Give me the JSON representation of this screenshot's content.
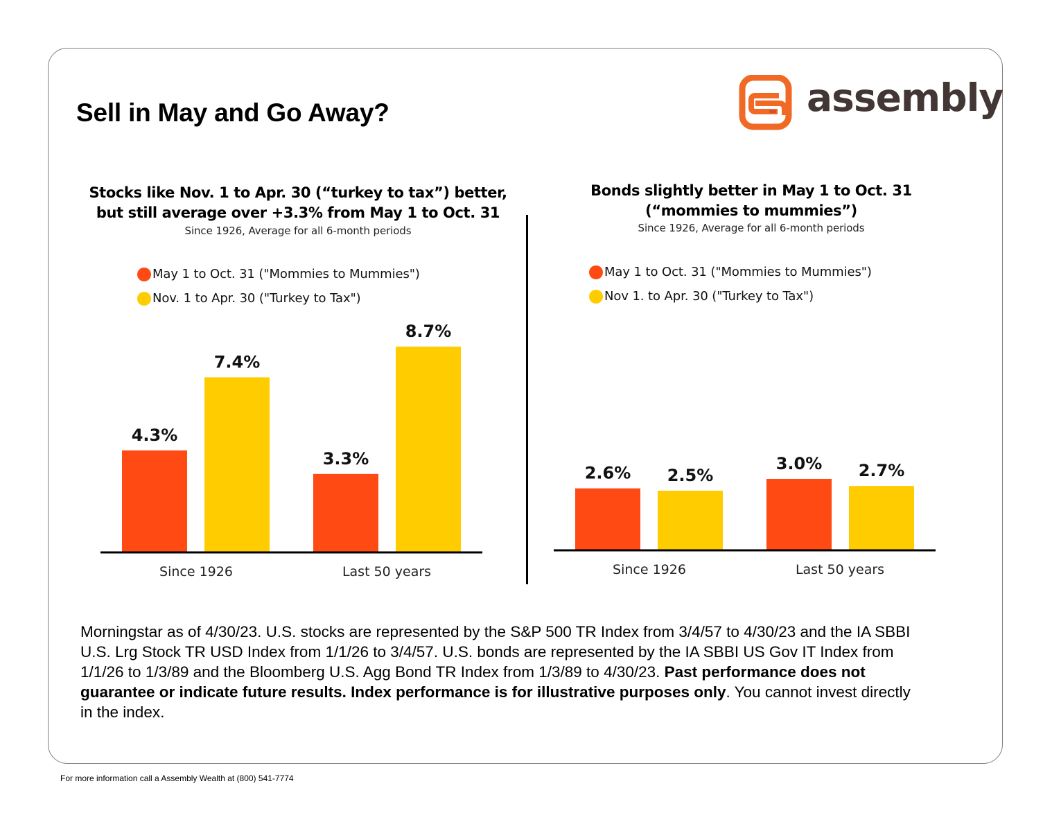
{
  "page": {
    "title": "Sell in May and Go Away?",
    "brand": {
      "name": "assembly",
      "icon": "assembly-logo-icon",
      "colors": {
        "icon": "#F06A25",
        "text": "#433735"
      }
    },
    "colors": {
      "may_oct": "#FF4A14",
      "nov_apr": "#FFCC00"
    },
    "footnote": {
      "segments": [
        {
          "text": "Morningstar as of 4/30/23. U.S. stocks are represented by the S&P 500 TR Index from 3/4/57 to 4/30/23 and the IA SBBI U.S. Lrg Stock TR USD Index from 1/1/26 to 3/4/57. U.S. bonds are represented by the IA SBBI US Gov IT Index from 1/1/26 to 1/3/89 and the Bloomberg U.S. Agg Bond TR Index from 1/3/89 to 4/30/23. ",
          "bold": false
        },
        {
          "text": "Past performance does not guarantee or indicate future results. Index performance is for illustrative purposes only",
          "bold": true
        },
        {
          "text": ". You cannot invest directly in the index.",
          "bold": false
        }
      ]
    },
    "contact": "For more information call a Assembly Wealth at (800) 541-7774"
  },
  "chart_data": [
    {
      "type": "bar",
      "title": "Stocks like Nov. 1 to Apr. 30 (“turkey to tax”) better, but still average over +3.3% from May 1 to Oct. 31",
      "title_lines": [
        "Stocks like Nov. 1 to Apr. 30 (“turkey to tax”) better,",
        "but still average over +3.3% from May 1 to Oct. 31"
      ],
      "subtitle": "Since 1926, Average for all 6-month periods",
      "xlabel": "",
      "ylabel": "",
      "ylim": [
        0,
        10
      ],
      "grid": false,
      "legend_position": "top-left",
      "categories": [
        "Since 1926",
        "Last 50 years"
      ],
      "series": [
        {
          "name": "May 1 to Oct. 31 (\"Mommies to Mummies\")",
          "color": "#FF4A14",
          "values": [
            4.3,
            3.3
          ],
          "labels": [
            "4.3%",
            "3.3%"
          ]
        },
        {
          "name": "Nov. 1 to Apr. 30 (\"Turkey to Tax\")",
          "color": "#FFCC00",
          "values": [
            7.4,
            8.7
          ],
          "labels": [
            "7.4%",
            "8.7%"
          ]
        }
      ]
    },
    {
      "type": "bar",
      "title": "Bonds slightly better in May 1 to Oct. 31 (“mommies to mummies”)",
      "title_lines": [
        "Bonds slightly better in May 1 to Oct. 31",
        "(“mommies to mummies”)"
      ],
      "subtitle": "Since 1926, Average for all 6-month periods",
      "xlabel": "",
      "ylabel": "",
      "ylim": [
        0,
        10
      ],
      "grid": false,
      "legend_position": "top-left",
      "categories": [
        "Since 1926",
        "Last 50 years"
      ],
      "series": [
        {
          "name": "May 1 to Oct. 31 (\"Mommies to Mummies\")",
          "color": "#FF4A14",
          "values": [
            2.6,
            3.0
          ],
          "labels": [
            "2.6%",
            "3.0%"
          ]
        },
        {
          "name": "Nov 1. to Apr. 30 (\"Turkey to Tax\")",
          "color": "#FFCC00",
          "values": [
            2.5,
            2.7
          ],
          "labels": [
            "2.5%",
            "2.7%"
          ]
        }
      ]
    }
  ]
}
